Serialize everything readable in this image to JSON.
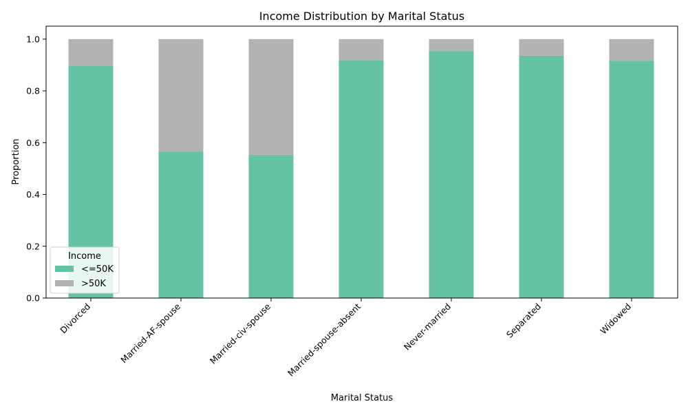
{
  "chart_data": {
    "type": "bar",
    "stacked": true,
    "title": "Income Distribution by Marital Status",
    "xlabel": "Marital Status",
    "ylabel": "Proportion",
    "ylim": [
      0,
      1.05
    ],
    "yticks": [
      "0.0",
      "0.2",
      "0.4",
      "0.6",
      "0.8",
      "1.0"
    ],
    "categories": [
      "Divorced",
      "Married-AF-spouse",
      "Married-civ-spouse",
      "Married-spouse-absent",
      "Never-married",
      "Separated",
      "Widowed"
    ],
    "series": [
      {
        "name": "<=50K",
        "color": "#66c2a5",
        "values": [
          0.896,
          0.565,
          0.553,
          0.919,
          0.954,
          0.936,
          0.916
        ]
      },
      {
        "name": ">50K",
        "color": "#b3b3b3",
        "values": [
          0.104,
          0.435,
          0.447,
          0.081,
          0.046,
          0.064,
          0.084
        ]
      }
    ],
    "legend": {
      "title": "Income",
      "position": "lower-left"
    },
    "grid": false
  }
}
